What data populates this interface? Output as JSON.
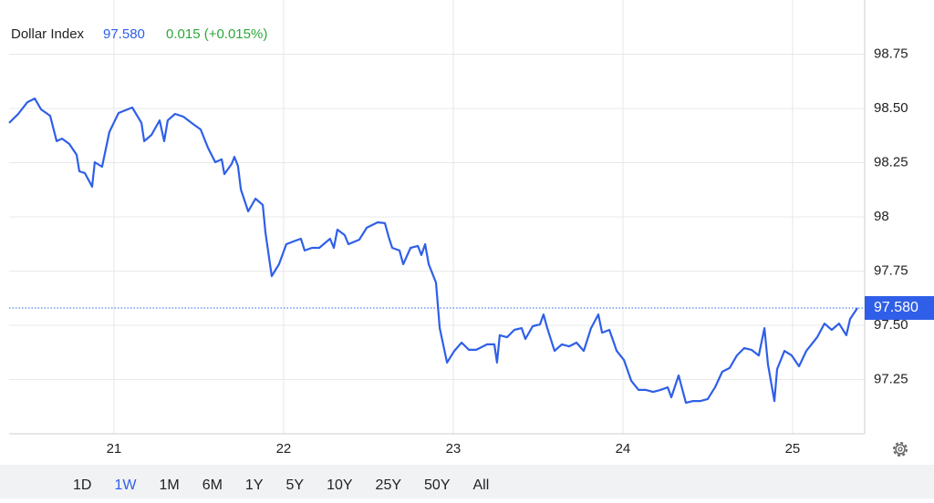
{
  "chart_data": {
    "type": "line",
    "title": "Dollar Index",
    "color": "#2f5fe8",
    "x": [
      20.382,
      20.436,
      20.49,
      20.533,
      20.57,
      20.624,
      20.662,
      20.694,
      20.737,
      20.78,
      20.796,
      20.828,
      20.871,
      20.887,
      20.93,
      20.973,
      21.027,
      21.081,
      21.108,
      21.162,
      21.178,
      21.221,
      21.269,
      21.296,
      21.317,
      21.36,
      21.409,
      21.457,
      21.511,
      21.554,
      21.597,
      21.635,
      21.651,
      21.694,
      21.71,
      21.731,
      21.748,
      21.791,
      21.834,
      21.877,
      21.893,
      21.93,
      21.973,
      22.016,
      22.059,
      22.102,
      22.124,
      22.167,
      22.21,
      22.274,
      22.296,
      22.317,
      22.36,
      22.382,
      22.446,
      22.49,
      22.554,
      22.597,
      22.619,
      22.64,
      22.683,
      22.705,
      22.748,
      22.791,
      22.812,
      22.834,
      22.855,
      22.898,
      22.92,
      22.963,
      23.006,
      23.049,
      23.092,
      23.135,
      23.199,
      23.242,
      23.258,
      23.274,
      23.317,
      23.36,
      23.403,
      23.425,
      23.468,
      23.511,
      23.532,
      23.554,
      23.597,
      23.64,
      23.683,
      23.726,
      23.769,
      23.812,
      23.855,
      23.877,
      23.92,
      23.963,
      24.006,
      24.049,
      24.092,
      24.135,
      24.178,
      24.221,
      24.264,
      24.285,
      24.328,
      24.371,
      24.414,
      24.457,
      24.5,
      24.543,
      24.586,
      24.629,
      24.672,
      24.715,
      24.758,
      24.801,
      24.834,
      24.855,
      24.893,
      24.909,
      24.952,
      24.995,
      25.038,
      25.081,
      25.145,
      25.188,
      25.231,
      25.274,
      25.317,
      25.339,
      25.382
    ],
    "values": [
      98.433,
      98.475,
      98.529,
      98.546,
      98.496,
      98.466,
      98.349,
      98.361,
      98.336,
      98.286,
      98.21,
      98.202,
      98.139,
      98.252,
      98.231,
      98.391,
      98.479,
      98.496,
      98.504,
      98.433,
      98.349,
      98.378,
      98.445,
      98.349,
      98.445,
      98.475,
      98.462,
      98.433,
      98.403,
      98.319,
      98.252,
      98.265,
      98.197,
      98.244,
      98.277,
      98.235,
      98.126,
      98.025,
      98.084,
      98.055,
      97.929,
      97.727,
      97.782,
      97.874,
      97.887,
      97.899,
      97.845,
      97.857,
      97.857,
      97.899,
      97.857,
      97.941,
      97.916,
      97.874,
      97.895,
      97.95,
      97.975,
      97.971,
      97.908,
      97.857,
      97.845,
      97.782,
      97.857,
      97.866,
      97.824,
      97.874,
      97.782,
      97.697,
      97.487,
      97.328,
      97.382,
      97.42,
      97.387,
      97.387,
      97.412,
      97.412,
      97.328,
      97.454,
      97.445,
      97.479,
      97.487,
      97.437,
      97.496,
      97.504,
      97.55,
      97.487,
      97.382,
      97.412,
      97.403,
      97.42,
      97.382,
      97.487,
      97.55,
      97.466,
      97.479,
      97.382,
      97.34,
      97.244,
      97.202,
      97.202,
      97.193,
      97.202,
      97.214,
      97.168,
      97.269,
      97.143,
      97.151,
      97.151,
      97.16,
      97.214,
      97.286,
      97.303,
      97.361,
      97.395,
      97.387,
      97.361,
      97.487,
      97.319,
      97.151,
      97.298,
      97.382,
      97.361,
      97.311,
      97.382,
      97.445,
      97.508,
      97.479,
      97.508,
      97.454,
      97.529,
      97.58
    ],
    "xlim": [
      20.382,
      25.425
    ],
    "xticks": [
      21,
      22,
      23,
      24,
      25
    ],
    "ylim": [
      97.0,
      99.0
    ],
    "yticks": [
      97.25,
      {
        "value": 97.5,
        "label": "97.50"
      },
      97.75,
      98,
      98.25,
      {
        "value": 98.5,
        "label": "98.50"
      },
      98.75
    ],
    "grid": true,
    "price_line": {
      "value": 97.58,
      "label": "97.580",
      "color": "#2f5fe8"
    }
  },
  "change": "0.015 (+0.015%)",
  "range_buttons": [
    "1D",
    "1W",
    "1M",
    "6M",
    "1Y",
    "5Y",
    "10Y",
    "25Y",
    "50Y",
    "All"
  ],
  "selected_range": "1W"
}
